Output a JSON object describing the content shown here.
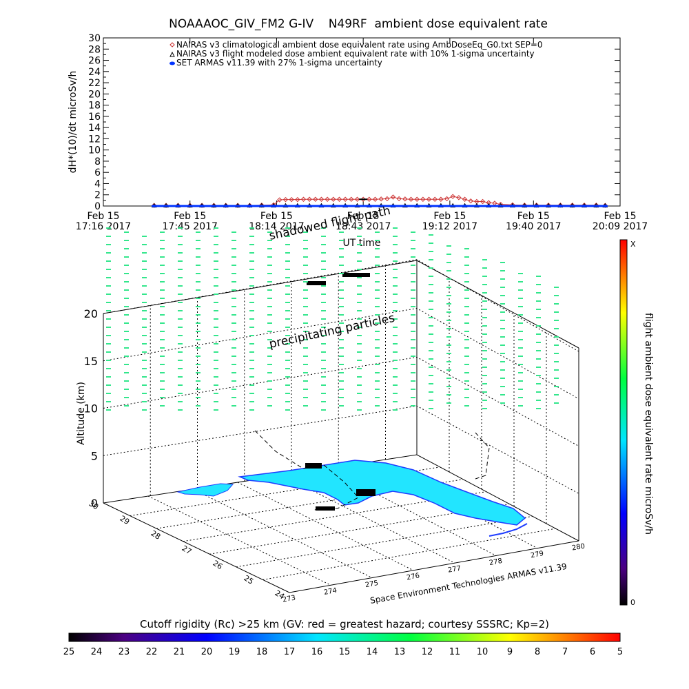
{
  "chart_data": [
    {
      "type": "line",
      "title": "NOAAAOC_GIV_FM2 G-IV    N49RF  ambient dose equivalent rate",
      "ylabel": "dH*(10)/dt microSv/h",
      "xlabel": "UT time",
      "ylim": [
        0,
        30
      ],
      "yticks": [
        "0",
        "2",
        "4",
        "6",
        "8",
        "10",
        "12",
        "14",
        "16",
        "18",
        "20",
        "22",
        "24",
        "26",
        "28",
        "30"
      ],
      "xlim_minutes": [
        0,
        173
      ],
      "xticks": [
        {
          "minute": 0,
          "date": "Feb 15",
          "time": "17:16 2017"
        },
        {
          "minute": 29,
          "date": "Feb 15",
          "time": "17:45 2017"
        },
        {
          "minute": 58,
          "date": "Feb 15",
          "time": "18:14 2017"
        },
        {
          "minute": 87,
          "date": "Feb 15",
          "time": "18:43 2017"
        },
        {
          "minute": 116,
          "date": "Feb 15",
          "time": "19:12 2017"
        },
        {
          "minute": 144,
          "date": "Feb 15",
          "time": "19:40 2017"
        },
        {
          "minute": 173,
          "date": "Feb 15",
          "time": "20:09 2017"
        }
      ],
      "legend": {
        "position": "top-center",
        "entries": [
          "NAIRAS v3 climatological ambient dose equivalent rate using AmbDoseEq_G0.txt SEP=0",
          "NAIRAS v3 flight modeled dose ambient equivalent rate with 10% 1-sigma uncertainty",
          "SET ARMAS v11.39 with 27% 1-sigma uncertainty"
        ]
      },
      "series": [
        {
          "color": "#cc3333",
          "marker": "diamond",
          "x": [
            17,
            21,
            25,
            29,
            33,
            37,
            41,
            45,
            49,
            53,
            57,
            59,
            61,
            63,
            65,
            67,
            69,
            71,
            73,
            75,
            77,
            79,
            81,
            83,
            85,
            87,
            89,
            91,
            93,
            95,
            97,
            99,
            101,
            103,
            105,
            107,
            109,
            111,
            113,
            115,
            117,
            119,
            121,
            123,
            125,
            127,
            129,
            131,
            133,
            137,
            141,
            145,
            149,
            153,
            157,
            161,
            165,
            168
          ],
          "y": [
            0.1,
            0.1,
            0.1,
            0.1,
            0.1,
            0.1,
            0.1,
            0.1,
            0.1,
            0.15,
            0.2,
            1.1,
            1.15,
            1.15,
            1.15,
            1.2,
            1.2,
            1.2,
            1.2,
            1.2,
            1.2,
            1.2,
            1.2,
            1.2,
            1.2,
            1.2,
            1.2,
            1.2,
            1.25,
            1.3,
            1.6,
            1.3,
            1.25,
            1.2,
            1.2,
            1.2,
            1.2,
            1.2,
            1.2,
            1.3,
            1.7,
            1.5,
            1.2,
            0.9,
            0.8,
            0.8,
            0.6,
            0.5,
            0.3,
            0.2,
            0.15,
            0.15,
            0.15,
            0.15,
            0.15,
            0.15,
            0.15,
            0.1
          ]
        },
        {
          "color": "#000000",
          "marker": "triangle",
          "x": [
            17,
            21,
            25,
            29,
            33,
            37,
            41,
            45,
            49,
            53,
            57,
            61,
            65,
            69,
            73,
            77,
            81,
            85,
            89,
            93,
            97,
            101,
            105,
            109,
            113,
            117,
            121,
            125,
            129,
            133,
            137,
            141,
            145,
            149,
            153,
            157,
            161,
            165,
            168
          ],
          "y": [
            0.05,
            0.05,
            0.05,
            0.05,
            0.05,
            0.05,
            0.05,
            0.05,
            0.05,
            0.05,
            0.05,
            0.05,
            0.05,
            0.05,
            0.05,
            0.05,
            0.05,
            0.05,
            0.05,
            0.05,
            0.05,
            0.05,
            0.05,
            0.05,
            0.05,
            0.05,
            0.05,
            0.05,
            0.05,
            0.05,
            0.05,
            0.05,
            0.05,
            0.05,
            0.05,
            0.05,
            0.05,
            0.05,
            0.05
          ]
        },
        {
          "color": "#0033ff",
          "marker": "filled-circle",
          "x": [
            17,
            25,
            33,
            41,
            49,
            57,
            65,
            73,
            81,
            89,
            97,
            105,
            113,
            121,
            129,
            137,
            145,
            153,
            161,
            168
          ],
          "y": [
            0,
            0,
            0,
            0,
            0,
            0,
            0,
            0,
            0,
            0,
            0,
            0,
            0,
            0,
            0,
            0,
            0,
            0,
            0,
            0
          ]
        }
      ],
      "error_bar": {
        "x": 87,
        "y": 1.2,
        "err": 0.3
      }
    },
    {
      "type": "scatter",
      "subtype": "3d",
      "zlabel": "Altitude (km)",
      "zticks": [
        "0",
        "5",
        "10",
        "15",
        "20"
      ],
      "left_axis_ticks": [
        "30",
        "29",
        "28",
        "27",
        "26",
        "25",
        "24"
      ],
      "front_axis_ticks": [
        "273",
        "274",
        "275",
        "276",
        "277",
        "278",
        "279",
        "280"
      ],
      "labels": [
        "shadowed flight path",
        "precipitating particles"
      ],
      "credit": "Space Environment Technologies ARMAS v11.39",
      "colorbar": {
        "label": "flight ambient dose equivalent rate microSv/h",
        "top_label": "X",
        "bottom_label": "0"
      },
      "particle_color": "#33e68c",
      "land_color": "#22e5ff"
    },
    {
      "type": "heatmap",
      "title": "Cutoff rigidity (Rc) >25 km (GV: red = greatest hazard; courtesy SSSRC; Kp=2)",
      "ticks": [
        "25",
        "24",
        "23",
        "22",
        "21",
        "20",
        "19",
        "18",
        "17",
        "16",
        "15",
        "14",
        "13",
        "12",
        "11",
        "10",
        "9",
        "8",
        "7",
        "6",
        "5"
      ]
    }
  ]
}
